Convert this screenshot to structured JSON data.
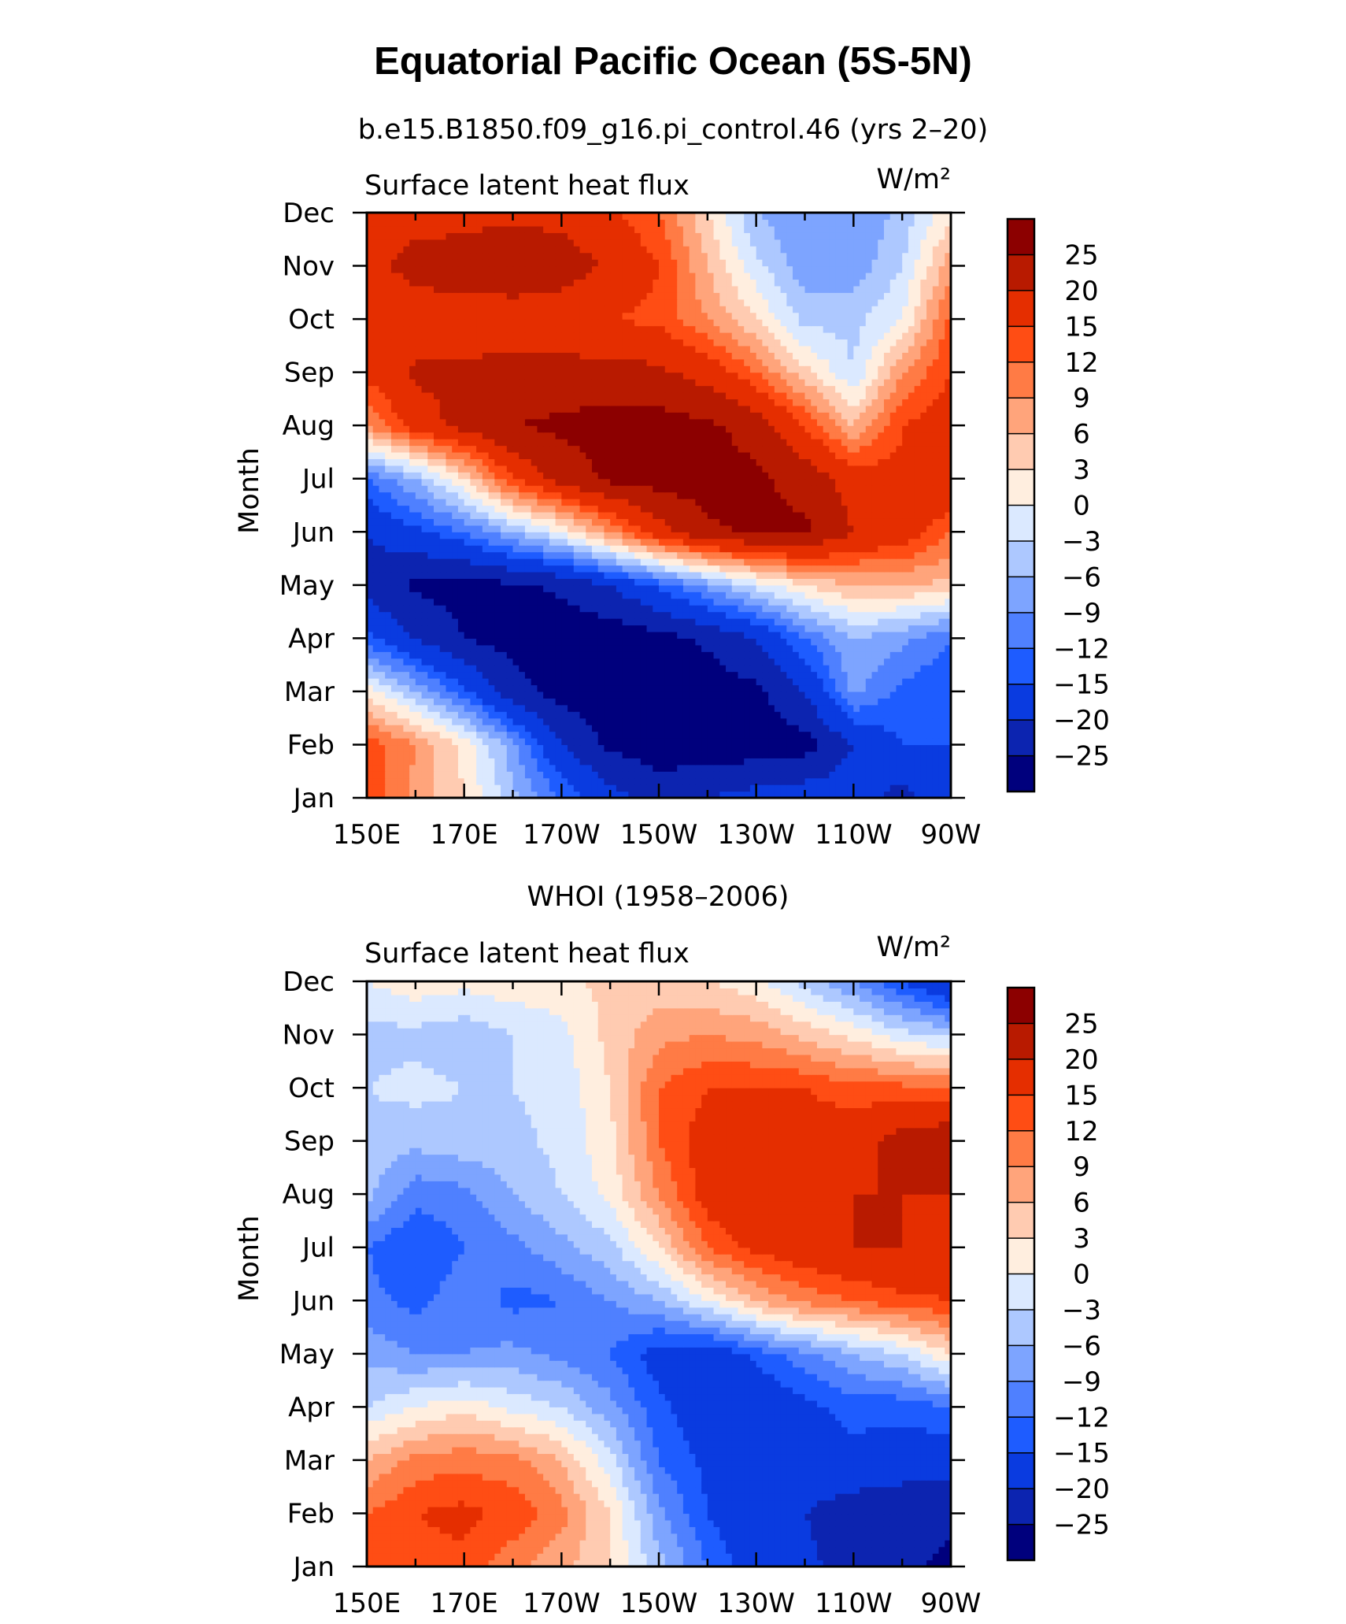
{
  "figure": {
    "title": "Equatorial Pacific Ocean (5S-5N)"
  },
  "colors": {
    "levels": [
      -25,
      -20,
      -15,
      -12,
      -9,
      -6,
      -3,
      0,
      3,
      6,
      9,
      12,
      15,
      20,
      25
    ],
    "palette": [
      "#00007d",
      "#0c24b0",
      "#0a3be0",
      "#1e5cff",
      "#4f80ff",
      "#7da4ff",
      "#adc8ff",
      "#dbe9ff",
      "#ffeedf",
      "#ffcbb1",
      "#ffa47b",
      "#ff7b45",
      "#ff4d14",
      "#e52e00",
      "#b81a00",
      "#8c0000"
    ]
  },
  "chart_data": [
    {
      "type": "heatmap",
      "subtitle": "b.e15.B1850.f09_g16.pi_control.46 (yrs 2–20)",
      "left_label": "Surface latent heat flux",
      "units": "W/m²",
      "ylabel": "Month",
      "xlabel": "",
      "x_ticks": [
        "150E",
        "170E",
        "170W",
        "150W",
        "130W",
        "110W",
        "90W"
      ],
      "x_values": [
        150,
        170,
        190,
        210,
        230,
        250,
        270
      ],
      "xlim": [
        150,
        270
      ],
      "y_ticks": [
        "Jan",
        "Feb",
        "Mar",
        "Apr",
        "May",
        "Jun",
        "Jul",
        "Aug",
        "Sep",
        "Oct",
        "Nov",
        "Dec"
      ],
      "ylim": [
        1,
        12
      ],
      "colorbar_labels": [
        "25",
        "20",
        "15",
        "12",
        "9",
        "6",
        "3",
        "0",
        "−3",
        "−6",
        "−9",
        "−12",
        "−15",
        "−20",
        "−25"
      ],
      "grid_lon": [
        150,
        160,
        170,
        180,
        190,
        200,
        210,
        220,
        230,
        240,
        250,
        260,
        270
      ],
      "grid_month": [
        "Jan",
        "Feb",
        "Mar",
        "Apr",
        "May",
        "Jun",
        "Jul",
        "Aug",
        "Sep",
        "Oct",
        "Nov",
        "Dec"
      ],
      "values": [
        [
          14,
          8,
          3,
          -5,
          -12,
          -18,
          -22,
          -20,
          -18,
          -17,
          -17,
          -22,
          -15
        ],
        [
          14,
          9,
          2,
          -8,
          -20,
          -26,
          -28,
          -28,
          -28,
          -27,
          -20,
          -15,
          -15
        ],
        [
          2,
          -6,
          -14,
          -23,
          -27,
          -28,
          -28,
          -28,
          -26,
          -20,
          -8,
          -13,
          -15
        ],
        [
          -14,
          -20,
          -25,
          -27,
          -28,
          -28,
          -27,
          -24,
          -20,
          -12,
          -6,
          -8,
          -12
        ],
        [
          -22,
          -26,
          -27,
          -26,
          -24,
          -20,
          -14,
          -8,
          -2,
          3,
          6,
          6,
          5
        ],
        [
          -20,
          -16,
          -12,
          -6,
          0,
          9,
          18,
          24,
          26,
          26,
          20,
          18,
          12
        ],
        [
          -12,
          -6,
          3,
          15,
          22,
          26,
          27,
          27,
          26,
          23,
          18,
          16,
          20
        ],
        [
          9,
          17,
          22,
          25,
          26,
          27,
          27,
          26,
          23,
          15,
          6,
          15,
          18
        ],
        [
          16,
          21,
          21,
          22,
          22,
          22,
          21,
          18,
          12,
          4,
          -3,
          9,
          15
        ],
        [
          16,
          17,
          17,
          17,
          16,
          15,
          14,
          9,
          3,
          -4,
          -4,
          0,
          13
        ],
        [
          18,
          22,
          23,
          24,
          23,
          19,
          15,
          6,
          -2,
          -8,
          -8,
          -3,
          8
        ],
        [
          17,
          18,
          18,
          19,
          18,
          16,
          12,
          3,
          -6,
          -9,
          -9,
          -5,
          2
        ]
      ]
    },
    {
      "type": "heatmap",
      "subtitle": "WHOI (1958–2006)",
      "left_label": "Surface latent heat flux",
      "units": "W/m²",
      "ylabel": "Month",
      "xlabel": "",
      "x_ticks": [
        "150E",
        "170E",
        "170W",
        "150W",
        "130W",
        "110W",
        "90W"
      ],
      "x_values": [
        150,
        170,
        190,
        210,
        230,
        250,
        270
      ],
      "xlim": [
        150,
        270
      ],
      "y_ticks": [
        "Jan",
        "Feb",
        "Mar",
        "Apr",
        "May",
        "Jun",
        "Jul",
        "Aug",
        "Sep",
        "Oct",
        "Nov",
        "Dec"
      ],
      "ylim": [
        1,
        12
      ],
      "colorbar_labels": [
        "25",
        "20",
        "15",
        "12",
        "9",
        "6",
        "3",
        "0",
        "−3",
        "−6",
        "−9",
        "−12",
        "−15",
        "−20",
        "−25"
      ],
      "grid_lon": [
        150,
        160,
        170,
        180,
        190,
        200,
        210,
        220,
        230,
        240,
        250,
        260,
        270
      ],
      "grid_month": [
        "Jan",
        "Feb",
        "Mar",
        "Apr",
        "May",
        "Jun",
        "Jul",
        "Aug",
        "Sep",
        "Oct",
        "Nov",
        "Dec"
      ],
      "values": [
        [
          12,
          14,
          14,
          10,
          7,
          3,
          -5,
          -12,
          -18,
          -19,
          -22,
          -24,
          -26
        ],
        [
          12,
          15,
          16,
          14,
          10,
          3,
          -8,
          -15,
          -18,
          -20,
          -23,
          -24,
          -24
        ],
        [
          6,
          10,
          11,
          10,
          6,
          -2,
          -12,
          -16,
          -19,
          -16,
          -16,
          -17,
          -18
        ],
        [
          -3,
          0,
          2,
          -1,
          -3,
          -8,
          -14,
          -18,
          -19,
          -16,
          -14,
          -14,
          -12
        ],
        [
          -7,
          -9,
          -9,
          -8,
          -10,
          -12,
          -17,
          -18,
          -14,
          -10,
          -6,
          -3,
          3
        ],
        [
          -11,
          -13,
          -10,
          -13,
          -12,
          -9,
          -6,
          0,
          6,
          10,
          12,
          14,
          15
        ],
        [
          -12,
          -15,
          -12,
          -10,
          -7,
          -4,
          3,
          12,
          16,
          18,
          20,
          20,
          18
        ],
        [
          -5,
          -11,
          -10,
          -6,
          -3,
          1,
          9,
          17,
          20,
          17,
          20,
          20,
          20
        ],
        [
          -4,
          -5,
          -4,
          -4,
          -2,
          2,
          12,
          17,
          19,
          17,
          18,
          22,
          24
        ],
        [
          -3,
          -2,
          -3,
          -3,
          -2,
          3,
          12,
          15,
          15,
          15,
          13,
          13,
          12
        ],
        [
          -4,
          -4,
          -5,
          -3,
          -1,
          4,
          8,
          9,
          8,
          5,
          2,
          -2,
          -4
        ],
        [
          0,
          2,
          1,
          2,
          2,
          4,
          4,
          3,
          1,
          -4,
          -9,
          -15,
          -21
        ]
      ]
    }
  ]
}
